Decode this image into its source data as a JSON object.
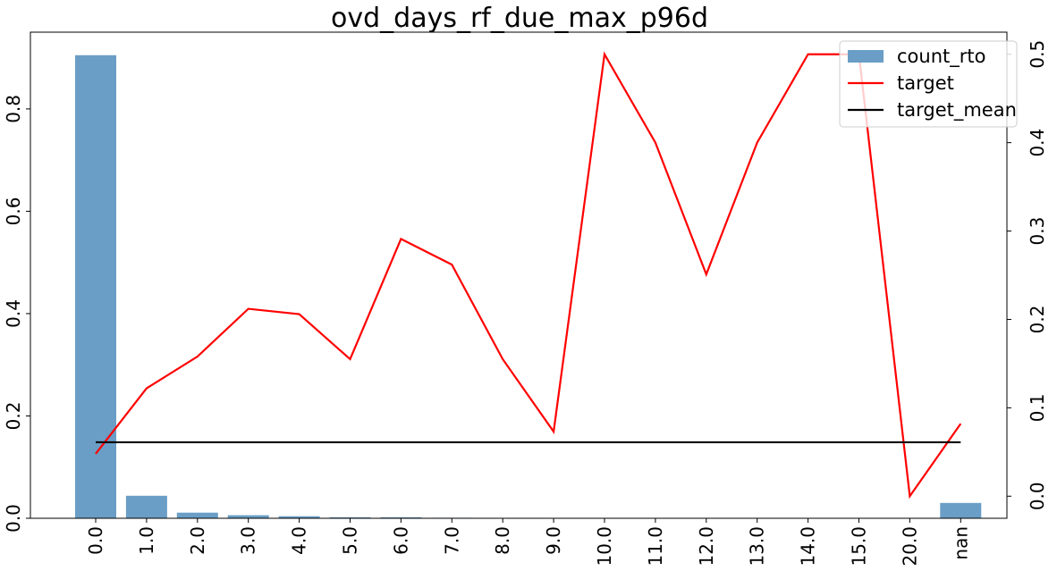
{
  "chart_data": {
    "type": "bar",
    "title": "ovd_days_rf_due_max_p96d",
    "categories": [
      "0.0",
      "1.0",
      "2.0",
      "3.0",
      "4.0",
      "5.0",
      "6.0",
      "7.0",
      "8.0",
      "9.0",
      "10.0",
      "11.0",
      "12.0",
      "13.0",
      "14.0",
      "15.0",
      "20.0",
      "nan"
    ],
    "series": [
      {
        "name": "count_rto",
        "type": "bar",
        "axis": "left",
        "color": "#6a9ec6",
        "values": [
          0.905,
          0.044,
          0.011,
          0.006,
          0.004,
          0.002,
          0.002,
          0.001,
          0.0007,
          0.0005,
          0.0003,
          0.0003,
          0.0002,
          0.0002,
          0.0001,
          0.0001,
          0.0001,
          0.03
        ]
      },
      {
        "name": "target",
        "type": "line",
        "axis": "right",
        "color": "#ff0000",
        "values": [
          0.048,
          0.122,
          0.158,
          0.212,
          0.206,
          0.155,
          0.291,
          0.262,
          0.155,
          0.073,
          0.5,
          0.4,
          0.251,
          0.4,
          0.5,
          0.5,
          0.0,
          0.082
        ]
      },
      {
        "name": "target_mean",
        "type": "line",
        "axis": "right",
        "color": "#000000",
        "values": [
          0.061,
          0.061,
          0.061,
          0.061,
          0.061,
          0.061,
          0.061,
          0.061,
          0.061,
          0.061,
          0.061,
          0.061,
          0.061,
          0.061,
          0.061,
          0.061,
          0.061,
          0.061
        ]
      }
    ],
    "ylim_left": [
      0,
      0.95
    ],
    "ylim_right": [
      -0.025,
      0.525
    ],
    "yticks_left": [
      0.0,
      0.2,
      0.4,
      0.6,
      0.8
    ],
    "yticks_right": [
      0.0,
      0.1,
      0.2,
      0.3,
      0.4,
      0.5
    ],
    "ytick_labels_left": [
      "0.0",
      "0.2",
      "0.4",
      "0.6",
      "0.8"
    ],
    "ytick_labels_right": [
      "0.0",
      "0.1",
      "0.2",
      "0.3",
      "0.4",
      "0.5"
    ],
    "xlabel": "",
    "ylabel": "",
    "grid": false,
    "legend_position": "top-right"
  }
}
